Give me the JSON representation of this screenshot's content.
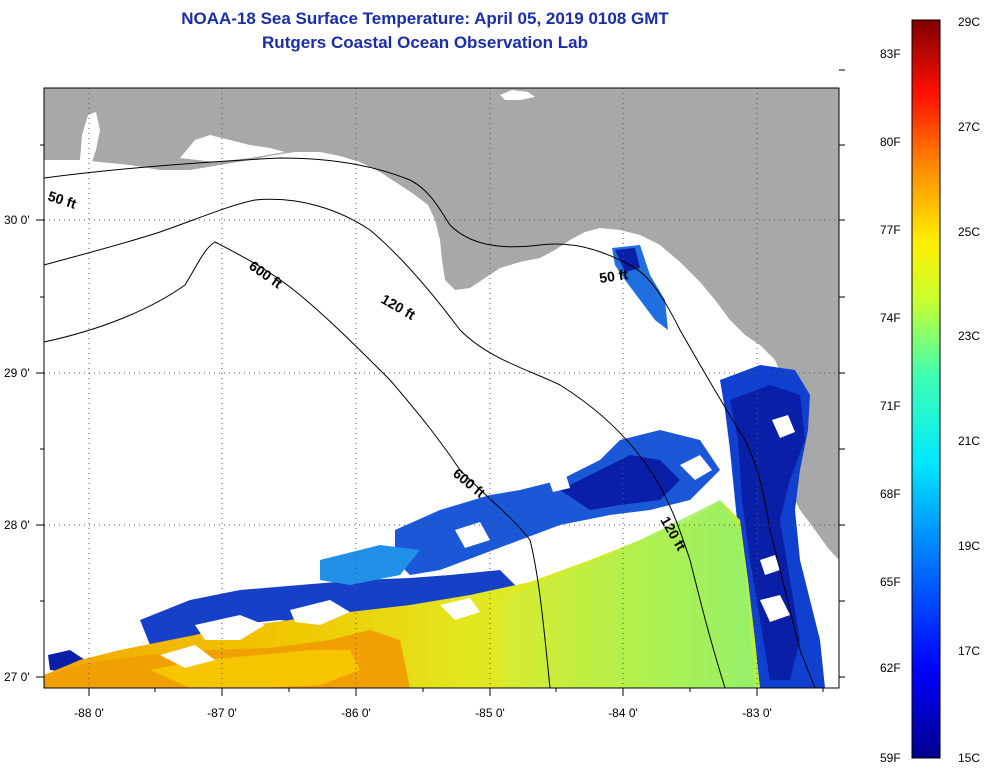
{
  "title_line1": "NOAA-18 Sea Surface Temperature:  April 05, 2019 0108 GMT",
  "title_line2": "Rutgers Coastal Ocean Observation Lab",
  "lat_labels": [
    "30 0'",
    "29 0'",
    "28 0'",
    "27 0'"
  ],
  "lon_labels": [
    "-88 0'",
    "-87 0'",
    "-86 0'",
    "-85 0'",
    "-84 0'",
    "-83 0'"
  ],
  "contours": {
    "c50_west": "50 ft",
    "c50_east": "50 ft",
    "c120_a": "120 ft",
    "c120_b": "120 ft",
    "c600_a": "600 ft",
    "c600_b": "600 ft"
  },
  "colorbar": {
    "f_labels": [
      "83F",
      "80F",
      "77F",
      "74F",
      "71F",
      "68F",
      "65F",
      "62F",
      "59F"
    ],
    "c_labels": [
      "29C",
      "27C",
      "25C",
      "23C",
      "21C",
      "19C",
      "17C",
      "15C"
    ]
  },
  "colors": {
    "land": "#a8a8a8",
    "title": "#1a2ea8",
    "cold": "#0a1fa8",
    "warm": "#f0a000"
  }
}
